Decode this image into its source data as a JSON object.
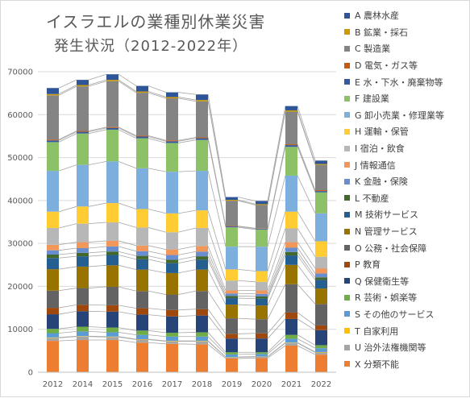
{
  "chart_data": {
    "type": "bar",
    "stacked": true,
    "title": "イスラエルの業種別休業災害",
    "subtitle": "発生状況（2012-2022年）",
    "categories": [
      "2012",
      "2014",
      "2015",
      "2016",
      "2017",
      "2018",
      "2019",
      "2020",
      "2021",
      "2022"
    ],
    "ylim": [
      0,
      70000
    ],
    "yticks": [
      "0",
      "10000",
      "20000",
      "30000",
      "40000",
      "50000",
      "60000",
      "70000"
    ],
    "grid": true,
    "legend_position": "right",
    "connector_lines": true,
    "series": [
      {
        "name": "X 分類不能",
        "color": "#ED7D31",
        "values": [
          7300,
          7500,
          7500,
          6900,
          6600,
          6500,
          3200,
          3300,
          6200,
          4100
        ]
      },
      {
        "name": "U 治外法権機関等",
        "color": "#A5A5A5",
        "values": [
          700,
          800,
          700,
          700,
          600,
          700,
          300,
          300,
          600,
          500
        ]
      },
      {
        "name": "T 自家利用",
        "color": "#FFC000",
        "values": [
          100,
          100,
          100,
          100,
          100,
          100,
          50,
          50,
          100,
          100
        ]
      },
      {
        "name": "S その他のサービス",
        "color": "#5B9BD5",
        "values": [
          1000,
          1100,
          1000,
          1000,
          1000,
          1000,
          600,
          600,
          900,
          900
        ]
      },
      {
        "name": "R 芸術・娯楽等",
        "color": "#70AD47",
        "values": [
          1000,
          1100,
          1100,
          1000,
          900,
          1000,
          500,
          400,
          900,
          700
        ]
      },
      {
        "name": "Q 保健衛生等",
        "color": "#264478",
        "values": [
          3400,
          3600,
          3700,
          3700,
          3800,
          3900,
          3200,
          3200,
          3700,
          3500
        ]
      },
      {
        "name": "P 教育",
        "color": "#9E480E",
        "values": [
          1500,
          1500,
          1500,
          1500,
          1500,
          1500,
          1100,
          1200,
          1500,
          1100
        ]
      },
      {
        "name": "O 公務・社会保障",
        "color": "#636363",
        "values": [
          4000,
          3900,
          4300,
          4000,
          3600,
          4200,
          3600,
          3300,
          6600,
          5000
        ]
      },
      {
        "name": "N 管理サービス",
        "color": "#997300",
        "values": [
          5000,
          5000,
          5000,
          5000,
          5000,
          5000,
          3200,
          3200,
          4500,
          3600
        ]
      },
      {
        "name": "M 技術サービス",
        "color": "#255E91",
        "values": [
          2600,
          2400,
          2400,
          2400,
          2300,
          2300,
          1500,
          1600,
          2200,
          2000
        ]
      },
      {
        "name": "L 不動産",
        "color": "#43682B",
        "values": [
          800,
          800,
          800,
          800,
          800,
          800,
          500,
          500,
          800,
          600
        ]
      },
      {
        "name": "K 金融・保険",
        "color": "#698ED0",
        "values": [
          1000,
          1100,
          1200,
          1100,
          1100,
          1100,
          600,
          600,
          1000,
          900
        ]
      },
      {
        "name": "J 情報通信",
        "color": "#F1975A",
        "values": [
          1300,
          1400,
          1300,
          1300,
          1300,
          1300,
          700,
          800,
          1300,
          1200
        ]
      },
      {
        "name": "I 宿泊・飲食",
        "color": "#B7B7B7",
        "values": [
          3900,
          4300,
          4300,
          4200,
          4000,
          4200,
          2300,
          2000,
          3200,
          2700
        ]
      },
      {
        "name": "H 運輸・保管",
        "color": "#FFCD33",
        "values": [
          3800,
          4000,
          4500,
          4300,
          4400,
          4100,
          2600,
          2500,
          3900,
          3600
        ]
      },
      {
        "name": "G 卸小売業・修理業等",
        "color": "#7CAFDD",
        "values": [
          9500,
          9700,
          9700,
          9500,
          9700,
          9200,
          5300,
          5700,
          8400,
          6500
        ]
      },
      {
        "name": "F 建設業",
        "color": "#8CC168",
        "values": [
          6700,
          7300,
          7400,
          7000,
          6700,
          7200,
          4500,
          4000,
          6700,
          4900
        ]
      },
      {
        "name": "E 水・下水・廃棄物等",
        "color": "#335AA1",
        "values": [
          400,
          400,
          400,
          400,
          400,
          400,
          200,
          200,
          400,
          300
        ]
      },
      {
        "name": "D 電気・ガス等",
        "color": "#C55A11",
        "values": [
          200,
          200,
          200,
          200,
          200,
          200,
          100,
          100,
          200,
          200
        ]
      },
      {
        "name": "C 製造業",
        "color": "#848484",
        "values": [
          10300,
          10400,
          10700,
          10000,
          9800,
          8400,
          5900,
          5400,
          7600,
          5900
        ]
      },
      {
        "name": "B 鉱業・採石",
        "color": "#CC9A00",
        "values": [
          300,
          300,
          300,
          300,
          300,
          300,
          200,
          200,
          300,
          200
        ]
      },
      {
        "name": "A 農林水産",
        "color": "#2E5597",
        "values": [
          1400,
          1200,
          1300,
          1300,
          1100,
          1300,
          650,
          750,
          1000,
          800
        ]
      }
    ]
  }
}
